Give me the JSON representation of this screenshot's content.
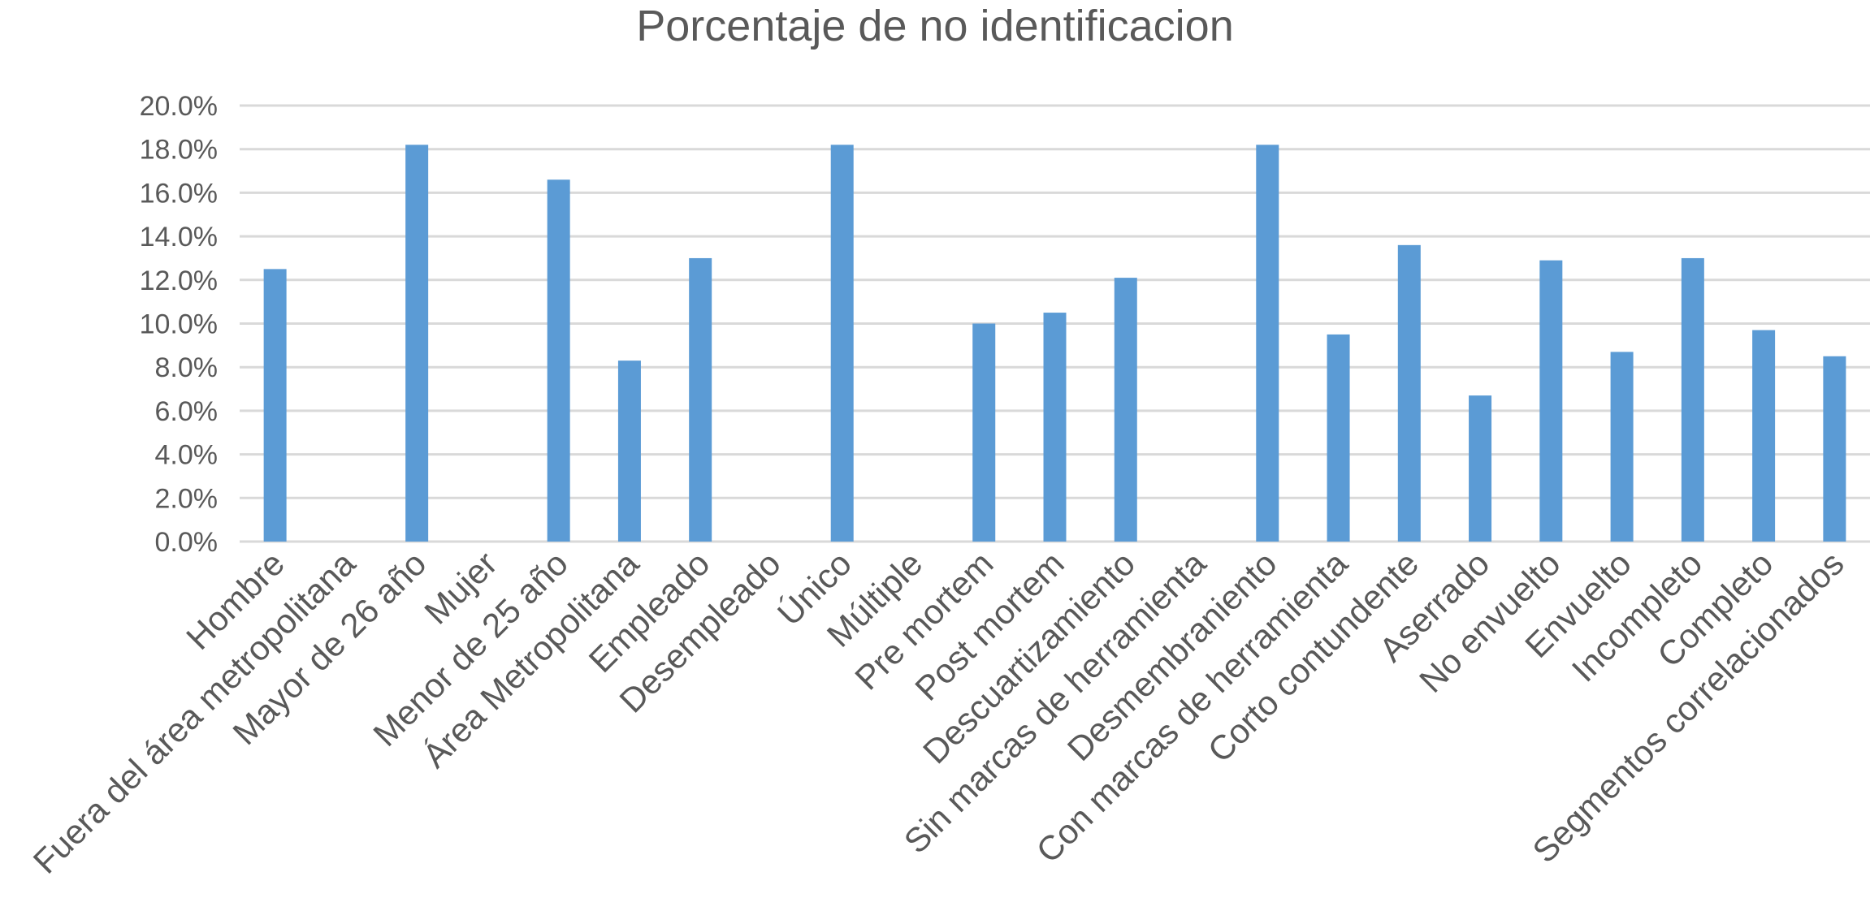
{
  "chart_data": {
    "type": "bar",
    "title": "Porcentaje de no identificacion",
    "xlabel": "",
    "ylabel": "",
    "ylim": [
      0,
      20
    ],
    "y_ticks": [
      "0.0%",
      "2.0%",
      "4.0%",
      "6.0%",
      "8.0%",
      "10.0%",
      "12.0%",
      "14.0%",
      "16.0%",
      "18.0%",
      "20.0%"
    ],
    "grid": true,
    "legend": "none",
    "bar_color": "#5b9bd5",
    "grid_color": "#d9d9d9",
    "text_color": "#595959",
    "categories": [
      "Hombre",
      "Fuera del área metropolitana",
      "Mayor de 26 año",
      "Mujer",
      "Menor de 25 año",
      "Área Metropolitana",
      "Empleado",
      "Desempleado",
      "Único",
      "Múltiple",
      "Pre mortem",
      "Post mortem",
      "Descuartizamiento",
      "Sin marcas de herramienta",
      "Desmembraniento",
      "Con marcas de herramienta",
      "Corto contundente",
      "Aserrado",
      "No envuelto",
      "Envuelto",
      "Incompleto",
      "Completo",
      "Segmentos correlacionados"
    ],
    "values": [
      12.5,
      0,
      18.2,
      0,
      16.6,
      8.3,
      13.0,
      0,
      18.2,
      0,
      10.0,
      10.5,
      12.1,
      0,
      18.2,
      9.5,
      13.6,
      6.7,
      12.9,
      8.7,
      13.0,
      9.7,
      8.5
    ]
  }
}
